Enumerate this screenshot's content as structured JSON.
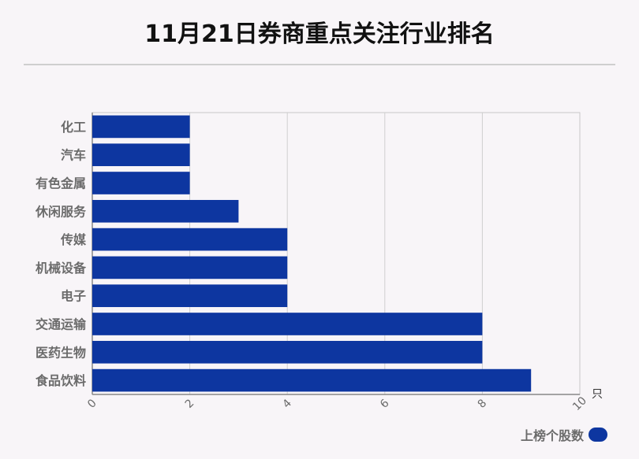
{
  "title": "11月21日券商重点关注行业排名",
  "chart_data": {
    "type": "bar",
    "orientation": "horizontal",
    "categories": [
      "化工",
      "汽车",
      "有色金属",
      "休闲服务",
      "传媒",
      "机械设备",
      "电子",
      "交通运输",
      "医药生物",
      "食品饮料"
    ],
    "series": [
      {
        "name": "上榜个股数",
        "values": [
          2,
          2,
          2,
          3,
          4,
          4,
          4,
          8,
          8,
          9
        ],
        "color": "#0d36a0"
      }
    ],
    "xlim": [
      0,
      10
    ],
    "xticks": [
      0,
      2,
      4,
      6,
      8,
      10
    ],
    "xunit": "只",
    "grid": true,
    "legend_position": "bottom-right"
  }
}
